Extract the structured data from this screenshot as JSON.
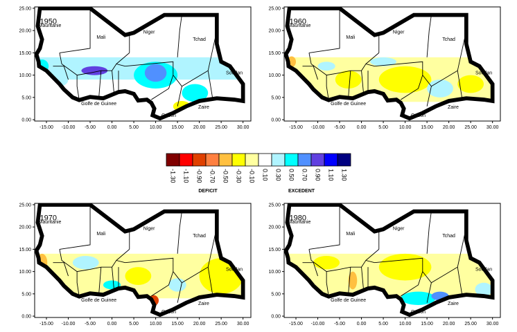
{
  "panels": [
    {
      "year": "1950"
    },
    {
      "year": "1960"
    },
    {
      "year": "1970"
    },
    {
      "year": "1980"
    }
  ],
  "map_labels": [
    "Mauritanie",
    "Mali",
    "Niger",
    "Tchad",
    "Soudan",
    "Golfe de Guinee",
    "Zaire",
    "Gabon"
  ],
  "axis": {
    "yticks": [
      "0.00",
      "5.00",
      "10.00",
      "15.00",
      "20.00",
      "25.00"
    ],
    "xticks": [
      "-15.00",
      "-10.00",
      "-5.00",
      "0.00",
      "5.00",
      "10.00",
      "15.00",
      "20.00",
      "25.00",
      "30.00"
    ]
  },
  "legend": {
    "items": [
      {
        "label": "-1.30",
        "color": "#800000"
      },
      {
        "label": "-1.10",
        "color": "#ff0000"
      },
      {
        "label": "-0.90",
        "color": "#e04000"
      },
      {
        "label": "-0.70",
        "color": "#ff8040"
      },
      {
        "label": "-0.50",
        "color": "#ffc040"
      },
      {
        "label": "-0.30",
        "color": "#ffff00"
      },
      {
        "label": "-0.10",
        "color": "#ffffa0"
      },
      {
        "label": "0.10",
        "color": "#ffffff"
      },
      {
        "label": "0.30",
        "color": "#b0f4ff"
      },
      {
        "label": "0.50",
        "color": "#00ffff"
      },
      {
        "label": "0.70",
        "color": "#5090ff"
      },
      {
        "label": "0.90",
        "color": "#6040e0"
      },
      {
        "label": "1.10",
        "color": "#0000ff"
      },
      {
        "label": "1.30",
        "color": "#000080"
      }
    ],
    "deficit": "DEFICIT",
    "excedent": "EXCEDENT"
  }
}
